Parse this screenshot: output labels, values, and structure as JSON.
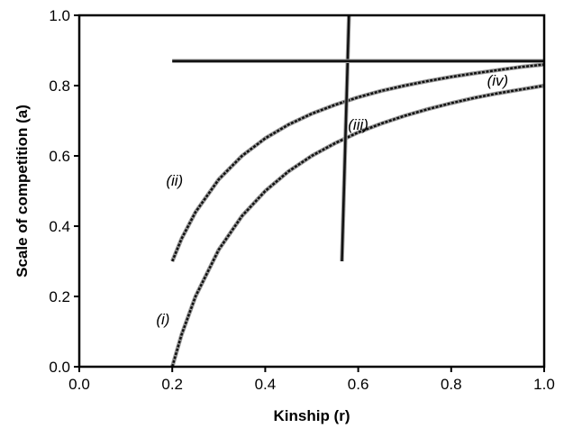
{
  "chart_data": {
    "type": "line",
    "xlabel": "Kinship (r)",
    "ylabel": "Scale of competition (a)",
    "xlim": [
      0.0,
      1.0
    ],
    "ylim": [
      0.0,
      1.0
    ],
    "x_ticks": [
      "0.0",
      "0.2",
      "0.4",
      "0.6",
      "0.8",
      "1.0"
    ],
    "y_ticks": [
      "0.0",
      "0.2",
      "0.4",
      "0.6",
      "0.8",
      "1.0"
    ],
    "grid": false,
    "series": [
      {
        "name": "(i)",
        "x": [
          0.2,
          0.22,
          0.25,
          0.3,
          0.35,
          0.4,
          0.45,
          0.5,
          0.55,
          0.6,
          0.65,
          0.7,
          0.75,
          0.8,
          0.85,
          0.9,
          0.95,
          1.0
        ],
        "y": [
          0.0,
          0.091,
          0.2,
          0.333,
          0.429,
          0.5,
          0.556,
          0.6,
          0.636,
          0.667,
          0.692,
          0.714,
          0.733,
          0.75,
          0.765,
          0.778,
          0.789,
          0.8
        ],
        "label_pos": [
          0.18,
          0.12
        ]
      },
      {
        "name": "(ii)",
        "x": [
          0.2,
          0.22,
          0.25,
          0.3,
          0.35,
          0.4,
          0.45,
          0.5,
          0.55,
          0.6,
          0.65,
          0.7,
          0.75,
          0.8,
          0.85,
          0.9,
          0.95,
          1.0
        ],
        "y": [
          0.3,
          0.364,
          0.44,
          0.533,
          0.6,
          0.65,
          0.689,
          0.72,
          0.745,
          0.767,
          0.785,
          0.8,
          0.813,
          0.825,
          0.835,
          0.844,
          0.853,
          0.86
        ],
        "label_pos": [
          0.205,
          0.515
        ]
      },
      {
        "name": "(iii)",
        "x": [
          0.565,
          0.58
        ],
        "y": [
          0.3,
          1.0
        ],
        "label_pos": [
          0.6,
          0.675
        ]
      },
      {
        "name": "(iv)",
        "x": [
          0.2,
          1.0
        ],
        "y": [
          0.87,
          0.87
        ],
        "label_pos": [
          0.9,
          0.8
        ]
      }
    ]
  }
}
